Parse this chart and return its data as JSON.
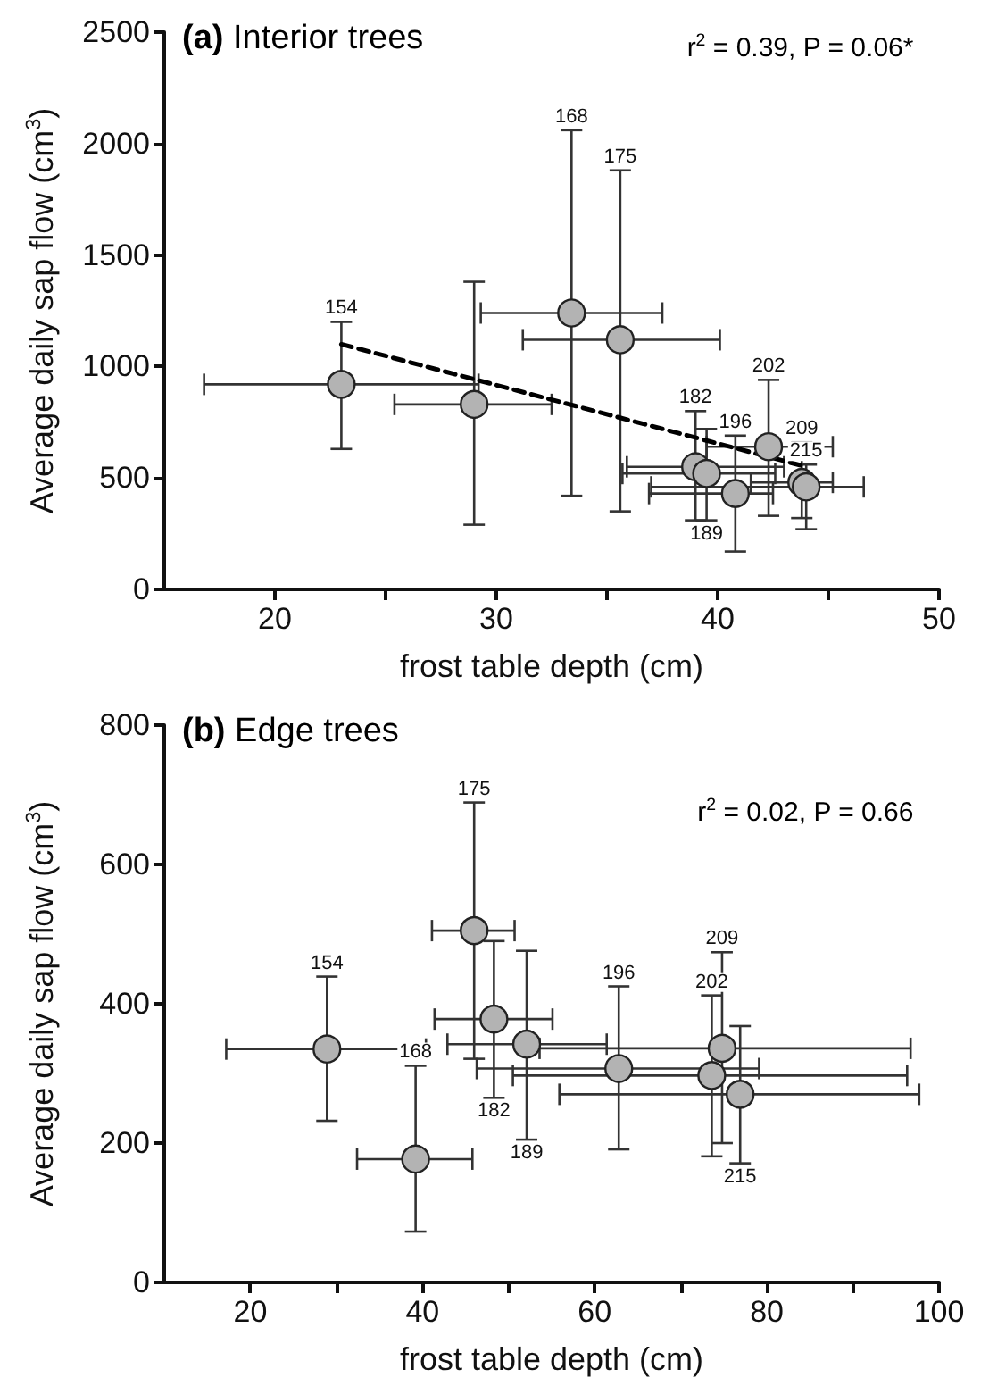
{
  "chart_data": [
    {
      "type": "scatter",
      "title": "(a) Interior trees",
      "xlabel": "frost table depth (cm)",
      "ylabel": "Average daily sap flow (cm$^{3}$)",
      "xlim": [
        15,
        50
      ],
      "xticks": [
        20,
        {
          "value": 25,
          "label": null
        },
        30,
        {
          "value": 35,
          "label": null
        },
        40,
        {
          "value": 45,
          "label": null
        },
        50
      ],
      "ylim": [
        0,
        2500
      ],
      "yticks": [
        0,
        500,
        1000,
        1500,
        2000,
        2500
      ],
      "grid": false,
      "marker": "circle",
      "series": [
        {
          "color": "#b3b3b3",
          "x": [
            23.0,
            29.0,
            33.4,
            35.6,
            39.0,
            39.5,
            40.8,
            42.3,
            43.8,
            44.0
          ],
          "values": [
            920,
            830,
            1240,
            1120,
            550,
            520,
            430,
            640,
            480,
            460
          ],
          "errors": [
            [
              630,
              1200
            ],
            [
              290,
              1380
            ],
            [
              420,
              2060
            ],
            [
              350,
              1880
            ],
            [
              310,
              800
            ],
            [
              310,
              720
            ],
            [
              170,
              690
            ],
            [
              330,
              940
            ],
            [
              320,
              660
            ],
            [
              270,
              560
            ]
          ],
          "xerrors": [
            [
              16.8,
              29.2
            ],
            [
              25.4,
              32.5
            ],
            [
              29.3,
              37.5
            ],
            [
              31.2,
              40.1
            ],
            [
              35.9,
              43.0
            ],
            [
              35.7,
              42.6
            ],
            [
              36.9,
              42.5
            ],
            [
              39.5,
              45.2
            ],
            [
              41.5,
              45.2
            ],
            [
              37.0,
              46.6
            ]
          ]
        },
        {
          "type": "line",
          "color": "#000000",
          "line_style": "dashed",
          "marker": "none",
          "x": [
            23,
            44
          ],
          "values": [
            1100,
            550
          ]
        }
      ],
      "annotations": [
        "r$^{2}$ = 0.39, P = 0.06*",
        {
          "text": "154",
          "x": 23.0,
          "y": 1200
        },
        {
          "text": "168",
          "x": 33.4,
          "y": 2060
        },
        {
          "text": "175",
          "x": 35.6,
          "y": 1880
        },
        {
          "text": "182",
          "x": 39.0,
          "y": 800
        },
        {
          "text": "189",
          "x": 39.5,
          "y": 310
        },
        {
          "text": "196",
          "x": 40.8,
          "y": 690
        },
        {
          "text": "202",
          "x": 42.3,
          "y": 940
        },
        {
          "text": "209",
          "x": 43.8,
          "y": 660
        },
        {
          "text": "215",
          "x": 44.0,
          "y": 560
        }
      ]
    },
    {
      "type": "scatter",
      "title": "(b) Edge trees",
      "xlabel": "frost table depth (cm)",
      "ylabel": "Average daily sap flow (cm$^{3}$)",
      "xlim": [
        10,
        100
      ],
      "xticks": [
        20,
        {
          "value": 30,
          "label": null
        },
        40,
        {
          "value": 50,
          "label": null
        },
        60,
        {
          "value": 70,
          "label": null
        },
        80,
        {
          "value": 90,
          "label": null
        },
        100
      ],
      "ylim": [
        0,
        800
      ],
      "yticks": [
        0,
        200,
        400,
        600,
        800
      ],
      "grid": false,
      "marker": "circle",
      "series": [
        {
          "color": "#b3b3b3",
          "x": [
            28.9,
            39.2,
            46.0,
            48.3,
            52.1,
            62.8,
            73.6,
            74.8,
            76.9
          ],
          "values": [
            335,
            177,
            505,
            378,
            342,
            307,
            297,
            336,
            270
          ],
          "errors": [
            [
              232,
              439
            ],
            [
              73,
              311
            ],
            [
              321,
              689
            ],
            [
              265,
              490
            ],
            [
              205,
              476
            ],
            [
              191,
              425
            ],
            [
              181,
              412
            ],
            [
              200,
              474
            ],
            [
              171,
              368
            ]
          ],
          "xerrors": [
            [
              17.2,
              40.4
            ],
            [
              32.4,
              45.8
            ],
            [
              41.1,
              50.7
            ],
            [
              41.4,
              55.1
            ],
            [
              42.9,
              61.4
            ],
            [
              46.3,
              79.1
            ],
            [
              50.5,
              96.3
            ],
            [
              53.6,
              96.7
            ],
            [
              55.9,
              97.7
            ]
          ]
        }
      ],
      "annotations": [
        "r$^{2}$ = 0.02, P = 0.66",
        {
          "text": "154",
          "x": 28.9,
          "y": 439
        },
        {
          "text": "168",
          "x": 39.2,
          "y": 311
        },
        {
          "text": "175",
          "x": 46.0,
          "y": 689
        },
        {
          "text": "182",
          "x": 48.3,
          "y": 265
        },
        {
          "text": "189",
          "x": 52.1,
          "y": 205
        },
        {
          "text": "196",
          "x": 62.8,
          "y": 425
        },
        {
          "text": "202",
          "x": 73.6,
          "y": 412
        },
        {
          "text": "209",
          "x": 74.8,
          "y": 474
        },
        {
          "text": "215",
          "x": 76.9,
          "y": 171
        }
      ]
    }
  ]
}
